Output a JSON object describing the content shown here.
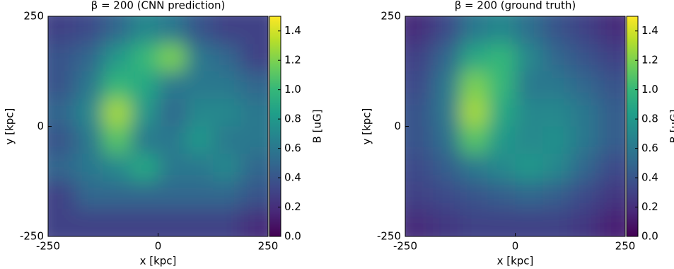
{
  "chart_data": [
    {
      "type": "heatmap",
      "title": "β = 200 (CNN prediction)",
      "x_label": "x [kpc]",
      "y_label": "y [kpc]",
      "xlim": [
        -250,
        250
      ],
      "ylim": [
        -250,
        250
      ],
      "xticks": [
        -250,
        0,
        250
      ],
      "yticks": [
        -250,
        0,
        250
      ],
      "colormap": "viridis",
      "clim": [
        0,
        1.5
      ],
      "colorbar_label": "B [uG]",
      "cticks": [
        {
          "value": 0,
          "label": "0.0"
        },
        0.2,
        0.4,
        0.6,
        0.8,
        {
          "value": 1,
          "label": "1.0"
        },
        1.2,
        1.4
      ],
      "z": [
        [
          0.3,
          0.35,
          0.5,
          0.7,
          0.6,
          0.4,
          0.3,
          0.3
        ],
        [
          0.4,
          0.5,
          0.8,
          1.0,
          1.2,
          0.6,
          0.5,
          0.3
        ],
        [
          0.4,
          0.6,
          1.0,
          0.9,
          0.6,
          0.6,
          0.6,
          0.5
        ],
        [
          0.5,
          0.7,
          1.3,
          0.8,
          0.5,
          0.7,
          0.7,
          0.6
        ],
        [
          0.4,
          0.6,
          1.1,
          0.6,
          0.6,
          0.8,
          0.6,
          0.6
        ],
        [
          0.5,
          0.6,
          0.7,
          0.9,
          0.6,
          0.6,
          0.7,
          0.5
        ],
        [
          0.3,
          0.5,
          0.5,
          0.5,
          0.5,
          0.5,
          0.5,
          0.4
        ],
        [
          0.3,
          0.3,
          0.3,
          0.3,
          0.3,
          0.3,
          0.3,
          0.2
        ]
      ]
    },
    {
      "type": "heatmap",
      "title": "β = 200 (ground truth)",
      "x_label": "x [kpc]",
      "y_label": "y [kpc]",
      "xlim": [
        -250,
        250
      ],
      "ylim": [
        -250,
        250
      ],
      "xticks": [
        -250,
        0,
        250
      ],
      "yticks": [
        -250,
        0,
        250
      ],
      "colormap": "viridis",
      "clim": [
        0,
        1.5
      ],
      "colorbar_label": "B [uG]",
      "cticks": [
        {
          "value": 0,
          "label": "0.0"
        },
        0.2,
        0.4,
        0.6,
        0.8,
        {
          "value": 1,
          "label": "1.0"
        },
        1.2,
        1.4
      ],
      "z": [
        [
          0.2,
          0.35,
          0.6,
          0.7,
          0.55,
          0.4,
          0.3,
          0.2
        ],
        [
          0.3,
          0.5,
          0.9,
          1.0,
          0.7,
          0.5,
          0.4,
          0.3
        ],
        [
          0.35,
          0.6,
          1.2,
          1.0,
          0.6,
          0.6,
          0.5,
          0.4
        ],
        [
          0.4,
          0.6,
          1.3,
          0.9,
          0.7,
          0.7,
          0.6,
          0.45
        ],
        [
          0.4,
          0.55,
          1.1,
          0.8,
          0.7,
          0.75,
          0.6,
          0.45
        ],
        [
          0.35,
          0.45,
          0.6,
          0.7,
          0.8,
          0.7,
          0.5,
          0.35
        ],
        [
          0.3,
          0.35,
          0.4,
          0.45,
          0.5,
          0.45,
          0.35,
          0.25
        ],
        [
          0.2,
          0.25,
          0.3,
          0.3,
          0.3,
          0.3,
          0.25,
          0.15
        ]
      ]
    }
  ]
}
